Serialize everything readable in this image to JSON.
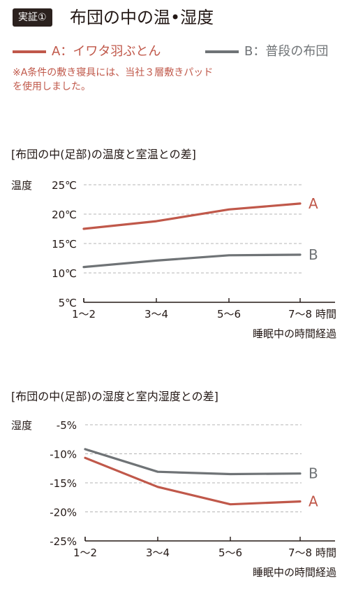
{
  "header": {
    "badge": "実証①",
    "title": "布団の中の温•湿度"
  },
  "legend": {
    "a_label": "A：イワタ羽ぶとん",
    "b_label": "B：普段の布団",
    "note": "※A条件の敷き寝具には、当社３層敷きパッドを使用しました。"
  },
  "colors": {
    "series_a": "#c0584a",
    "series_b": "#6f7376",
    "grid": "#b5b5b5",
    "axis": "#231815"
  },
  "chart_data": [
    {
      "type": "line",
      "title": "[布団の中(足部)の温度と室温との差]",
      "ylabel": "温度",
      "xlabel": "睡眠中の時間経過",
      "xunit": "時間",
      "categories": [
        "1〜2",
        "3〜4",
        "5〜6",
        "7〜8"
      ],
      "yticks": [
        "25℃",
        "20℃",
        "15℃",
        "10℃",
        "5℃"
      ],
      "ylim": [
        5,
        25
      ],
      "grid": true,
      "series": [
        {
          "name": "A",
          "values": [
            17.5,
            18.8,
            20.8,
            21.8
          ]
        },
        {
          "name": "B",
          "values": [
            11.0,
            12.1,
            13.0,
            13.1
          ]
        }
      ]
    },
    {
      "type": "line",
      "title": "[布団の中(足部)の湿度と室内湿度との差]",
      "ylabel": "湿度",
      "xlabel": "睡眠中の時間経過",
      "xunit": "時間",
      "categories": [
        "1〜2",
        "3〜4",
        "5〜6",
        "7〜8"
      ],
      "yticks": [
        "-5%",
        "-10%",
        "-15%",
        "-20%",
        "-25%"
      ],
      "ylim": [
        -25,
        -5
      ],
      "grid": true,
      "series": [
        {
          "name": "A",
          "values": [
            -10.7,
            -15.7,
            -18.7,
            -18.2
          ]
        },
        {
          "name": "B",
          "values": [
            -9.2,
            -13.1,
            -13.5,
            -13.4
          ]
        }
      ]
    }
  ]
}
